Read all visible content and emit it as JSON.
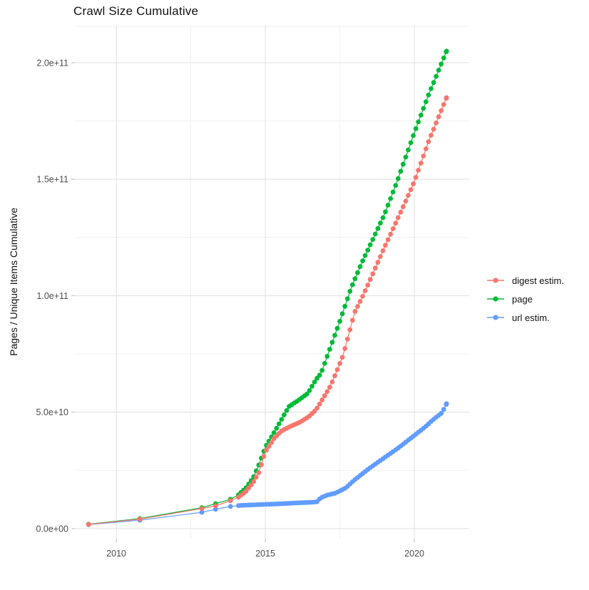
{
  "chart_data": {
    "type": "scatter",
    "title": "Crawl Size Cumulative",
    "xlabel": "",
    "ylabel": "Pages / Unique Items Cumulative",
    "y_values_unit": 1000000000,
    "xlim": [
      2008.61,
      2021.84
    ],
    "ylim_billions": [
      -4.3,
      216.2
    ],
    "grid": "on",
    "legend_position": "right",
    "x_ticks": [
      {
        "value": 2010,
        "label": "2010"
      },
      {
        "value": 2015,
        "label": "2015"
      },
      {
        "value": 2020,
        "label": "2020"
      }
    ],
    "y_ticks": [
      {
        "value_billions": 0,
        "label": "0.0e+00"
      },
      {
        "value_billions": 50,
        "label": "5.0e+10"
      },
      {
        "value_billions": 100,
        "label": "1.0e+11"
      },
      {
        "value_billions": 150,
        "label": "1.5e+11"
      },
      {
        "value_billions": 200,
        "label": "2.0e+11"
      }
    ],
    "x_minor_gridlines": [
      2012.5,
      2017.5
    ],
    "y_minor_gridlines_billions": [
      25,
      75,
      125,
      175,
      215.5
    ],
    "legend": [
      {
        "name": "digest estim.",
        "color": "#F8766D"
      },
      {
        "name": "page",
        "color": "#00BA38"
      },
      {
        "name": "url estim.",
        "color": "#619CFF"
      }
    ],
    "sparse_point_years": [
      2009.07,
      2010.79,
      2012.87,
      2013.33,
      2013.83
    ],
    "dense_start_year": 2014.1,
    "dense_end_year": 2021.08,
    "marker_step_years": 0.085,
    "draw_order": [
      2,
      1,
      0
    ],
    "series": [
      {
        "name": "digest estim.",
        "color": "#F8766D",
        "points_year_billions": [
          [
            2009.07,
            1.8
          ],
          [
            2010.79,
            4.1
          ],
          [
            2012.87,
            8.6
          ],
          [
            2013.33,
            9.8
          ],
          [
            2013.83,
            12
          ],
          [
            2014.1,
            13.5
          ],
          [
            2014.35,
            16
          ],
          [
            2014.6,
            20
          ],
          [
            2014.78,
            24
          ],
          [
            2015.0,
            33
          ],
          [
            2015.31,
            39
          ],
          [
            2015.55,
            42
          ],
          [
            2015.86,
            44
          ],
          [
            2016.15,
            45.6
          ],
          [
            2016.45,
            48
          ],
          [
            2016.7,
            51
          ],
          [
            2017.06,
            58.5
          ],
          [
            2017.2,
            61.6
          ],
          [
            2017.6,
            74
          ],
          [
            2018.0,
            93
          ],
          [
            2018.25,
            99.3
          ],
          [
            2018.61,
            109.5
          ],
          [
            2018.97,
            120
          ],
          [
            2019.33,
            130
          ],
          [
            2019.69,
            140
          ],
          [
            2020.0,
            149
          ],
          [
            2020.5,
            167
          ],
          [
            2021.08,
            185
          ]
        ]
      },
      {
        "name": "page",
        "color": "#00BA38",
        "points_year_billions": [
          [
            2009.07,
            1.9
          ],
          [
            2010.79,
            4.3
          ],
          [
            2012.87,
            9
          ],
          [
            2013.33,
            10.7
          ],
          [
            2013.83,
            12.6
          ],
          [
            2014.1,
            14.5
          ],
          [
            2014.35,
            17.5
          ],
          [
            2014.6,
            22
          ],
          [
            2014.78,
            27.3
          ],
          [
            2015.0,
            35
          ],
          [
            2015.31,
            41.6
          ],
          [
            2015.55,
            47
          ],
          [
            2015.79,
            52.4
          ],
          [
            2016.1,
            55
          ],
          [
            2016.42,
            58
          ],
          [
            2016.7,
            64
          ],
          [
            2016.87,
            66.7
          ],
          [
            2017.5,
            89
          ],
          [
            2017.87,
            103
          ],
          [
            2018.23,
            114
          ],
          [
            2018.6,
            124
          ],
          [
            2019.0,
            135
          ],
          [
            2019.42,
            149
          ],
          [
            2020.0,
            170
          ],
          [
            2020.5,
            187
          ],
          [
            2021.08,
            205
          ]
        ]
      },
      {
        "name": "url estim.",
        "color": "#619CFF",
        "points_year_billions": [
          [
            2009.07,
            1.7
          ],
          [
            2010.79,
            3.6
          ],
          [
            2012.87,
            7
          ],
          [
            2013.33,
            8.3
          ],
          [
            2013.83,
            9.5
          ],
          [
            2014.2,
            10
          ],
          [
            2015.0,
            10.4
          ],
          [
            2015.6,
            10.7
          ],
          [
            2016.0,
            11
          ],
          [
            2016.55,
            11.3
          ],
          [
            2016.75,
            11.6
          ],
          [
            2016.85,
            13.2
          ],
          [
            2017.1,
            14.5
          ],
          [
            2017.35,
            15.2
          ],
          [
            2017.7,
            17.5
          ],
          [
            2018.0,
            21
          ],
          [
            2018.5,
            26
          ],
          [
            2019.0,
            30.5
          ],
          [
            2019.5,
            35
          ],
          [
            2020.0,
            40
          ],
          [
            2020.35,
            43.5
          ],
          [
            2020.65,
            47
          ],
          [
            2020.9,
            49.5
          ],
          [
            2021.0,
            51.5
          ],
          [
            2021.08,
            53.6
          ]
        ]
      }
    ],
    "style": {
      "background": "#ffffff",
      "major_grid_color": "#E7E7E7",
      "minor_grid_color": "#F1F1F1",
      "tick_mark_color": "#C6C6C6",
      "tick_label_color": "#4D4D4D",
      "marker_radius": 3.4
    }
  }
}
